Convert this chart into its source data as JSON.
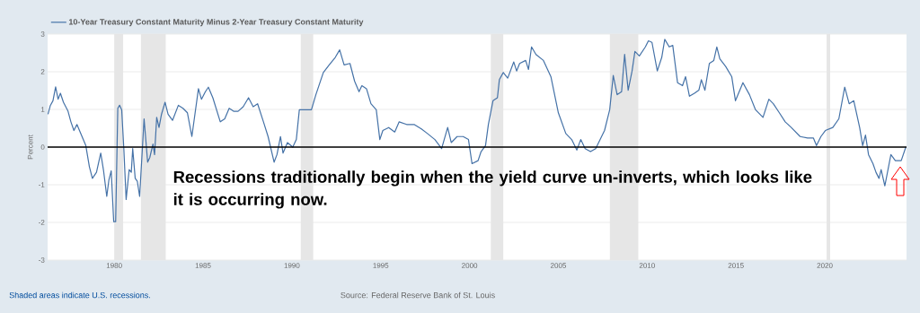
{
  "chart_data": {
    "type": "line",
    "ylabel": "Percent",
    "annotations": [
      "Recessions traditionally begin when the yield curve un-inverts, which looks like it is occurring now.",
      "Shaded areas indicate U.S. recessions.",
      "Source: Federal Reserve Bank of St. Louis"
    ],
    "xlim": [
      1976.25,
      2024.6
    ],
    "xticks": [
      1980,
      1985,
      1990,
      1995,
      2000,
      2005,
      2010,
      2015,
      2020
    ],
    "ylim": [
      -3,
      3
    ],
    "yticks": [
      -3,
      -2,
      -1,
      0,
      1,
      2,
      3
    ],
    "grid": "y",
    "legend": "top left",
    "ref_lines": [
      {
        "axis": "y",
        "value": 0,
        "color": "#000000"
      }
    ],
    "bands": [
      {
        "axis": "x",
        "from": 1980.0,
        "to": 1980.5,
        "color": "#e6e6e6"
      },
      {
        "axis": "x",
        "from": 1981.5,
        "to": 1982.9,
        "color": "#e6e6e6"
      },
      {
        "axis": "x",
        "from": 1990.5,
        "to": 1991.2,
        "color": "#e6e6e6"
      },
      {
        "axis": "x",
        "from": 2001.2,
        "to": 2001.9,
        "color": "#e6e6e6"
      },
      {
        "axis": "x",
        "from": 2007.9,
        "to": 2009.5,
        "color": "#e6e6e6"
      },
      {
        "axis": "x",
        "from": 2020.1,
        "to": 2020.3,
        "color": "#e6e6e6"
      }
    ],
    "series": [
      {
        "name": "10-Year Treasury Constant Maturity Minus 2-Year Treasury Constant Maturity",
        "color": "#4572a7",
        "x": [
          1976.27,
          1976.4,
          1976.55,
          1976.7,
          1976.84,
          1976.97,
          1977.14,
          1977.4,
          1977.56,
          1977.73,
          1977.9,
          1978.15,
          1978.4,
          1978.6,
          1978.77,
          1979.0,
          1979.24,
          1979.4,
          1979.58,
          1979.7,
          1979.83,
          1979.97,
          1980.08,
          1980.2,
          1980.3,
          1980.42,
          1980.54,
          1980.67,
          1980.84,
          1980.96,
          1981.04,
          1981.18,
          1981.3,
          1981.43,
          1981.68,
          1981.88,
          1982.0,
          1982.18,
          1982.27,
          1982.39,
          1982.52,
          1982.66,
          1982.86,
          1983.03,
          1983.28,
          1983.61,
          1983.87,
          1984.12,
          1984.37,
          1984.74,
          1984.91,
          1985.13,
          1985.3,
          1985.55,
          1985.97,
          1986.22,
          1986.47,
          1986.72,
          1986.97,
          1987.26,
          1987.56,
          1987.82,
          1988.07,
          1988.4,
          1988.66,
          1989.0,
          1989.16,
          1989.36,
          1989.5,
          1989.75,
          1990.05,
          1990.25,
          1990.42,
          1990.67,
          1991.1,
          1991.35,
          1991.77,
          1992.1,
          1992.44,
          1992.69,
          1992.94,
          1993.27,
          1993.53,
          1993.78,
          1993.94,
          1994.2,
          1994.45,
          1994.75,
          1994.95,
          1995.12,
          1995.45,
          1995.79,
          1996.04,
          1996.46,
          1996.88,
          1997.29,
          1997.63,
          1998.05,
          1998.43,
          1998.77,
          1998.97,
          1999.3,
          1999.64,
          1999.94,
          2000.14,
          2000.48,
          2000.65,
          2000.9,
          2001.06,
          2001.32,
          2001.57,
          2001.68,
          2001.9,
          2002.15,
          2002.49,
          2002.65,
          2002.82,
          2003.16,
          2003.32,
          2003.49,
          2003.74,
          2004.16,
          2004.58,
          2005.0,
          2005.42,
          2005.75,
          2006.04,
          2006.26,
          2006.51,
          2006.81,
          2007.1,
          2007.39,
          2007.6,
          2007.89,
          2008.09,
          2008.31,
          2008.56,
          2008.73,
          2008.93,
          2009.15,
          2009.31,
          2009.56,
          2009.9,
          2010.07,
          2010.27,
          2010.57,
          2010.82,
          2010.99,
          2011.24,
          2011.44,
          2011.71,
          2011.99,
          2012.16,
          2012.38,
          2012.66,
          2012.91,
          2013.05,
          2013.25,
          2013.5,
          2013.75,
          2013.92,
          2014.09,
          2014.42,
          2014.76,
          2014.97,
          2015.18,
          2015.39,
          2015.76,
          2016.1,
          2016.52,
          2016.85,
          2017.1,
          2017.44,
          2017.77,
          2018.11,
          2018.61,
          2019.03,
          2019.36,
          2019.53,
          2019.78,
          2020.03,
          2020.45,
          2020.79,
          2021.12,
          2021.37,
          2021.63,
          2021.96,
          2022.13,
          2022.29,
          2022.46,
          2022.71,
          2022.88,
          2023.05,
          2023.17,
          2023.38,
          2023.72,
          2023.97,
          2024.3,
          2024.56
        ],
        "values": [
          0.87,
          1.1,
          1.23,
          1.6,
          1.27,
          1.43,
          1.19,
          0.95,
          0.67,
          0.44,
          0.6,
          0.32,
          0.04,
          -0.52,
          -0.83,
          -0.67,
          -0.16,
          -0.63,
          -1.31,
          -0.87,
          -0.63,
          -1.98,
          -1.98,
          1.03,
          1.11,
          0.99,
          -0.04,
          -1.39,
          -0.6,
          -0.67,
          -0.04,
          -0.83,
          -0.91,
          -1.31,
          0.75,
          -0.4,
          -0.28,
          0.08,
          -0.2,
          0.79,
          0.52,
          0.87,
          1.19,
          0.87,
          0.71,
          1.11,
          1.03,
          0.91,
          0.28,
          1.55,
          1.27,
          1.47,
          1.59,
          1.31,
          0.67,
          0.75,
          1.03,
          0.95,
          0.95,
          1.07,
          1.31,
          1.07,
          1.15,
          0.67,
          0.28,
          -0.4,
          -0.2,
          0.28,
          -0.16,
          0.12,
          0.0,
          0.2,
          0.99,
          0.99,
          0.99,
          1.39,
          1.98,
          2.18,
          2.38,
          2.58,
          2.18,
          2.22,
          1.75,
          1.47,
          1.63,
          1.55,
          1.15,
          0.99,
          0.2,
          0.44,
          0.52,
          0.4,
          0.67,
          0.6,
          0.6,
          0.48,
          0.36,
          0.2,
          -0.04,
          0.52,
          0.12,
          0.28,
          0.28,
          0.2,
          -0.44,
          -0.36,
          -0.12,
          0.04,
          0.6,
          1.23,
          1.31,
          1.79,
          1.98,
          1.83,
          2.26,
          2.02,
          2.22,
          2.3,
          2.06,
          2.66,
          2.46,
          2.3,
          1.87,
          0.91,
          0.36,
          0.2,
          -0.08,
          0.2,
          -0.04,
          -0.12,
          -0.04,
          0.24,
          0.44,
          0.99,
          1.9,
          1.39,
          1.47,
          2.46,
          1.51,
          2.02,
          2.54,
          2.42,
          2.66,
          2.82,
          2.78,
          2.02,
          2.38,
          2.86,
          2.66,
          2.7,
          1.71,
          1.63,
          1.87,
          1.35,
          1.43,
          1.51,
          1.79,
          1.51,
          2.22,
          2.3,
          2.66,
          2.34,
          2.14,
          1.87,
          1.23,
          1.47,
          1.71,
          1.39,
          0.99,
          0.79,
          1.27,
          1.15,
          0.91,
          0.67,
          0.52,
          0.28,
          0.24,
          0.24,
          0.04,
          0.28,
          0.44,
          0.52,
          0.75,
          1.59,
          1.15,
          1.23,
          0.52,
          0.04,
          0.32,
          -0.2,
          -0.44,
          -0.67,
          -0.83,
          -0.6,
          -1.03,
          -0.2,
          -0.36,
          -0.36,
          0.0
        ]
      }
    ]
  }
}
